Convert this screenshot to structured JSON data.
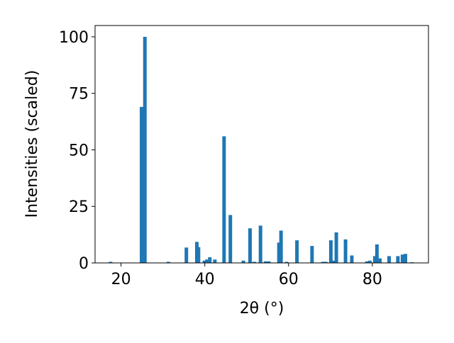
{
  "chart_data": {
    "type": "bar",
    "xlabel": "2θ (°)",
    "ylabel": "Intensities (scaled)",
    "color": "#1f77b4",
    "x": [
      17.5,
      24.9,
      25.7,
      31.3,
      35.6,
      38.1,
      38.5,
      39.9,
      40.5,
      41.2,
      42.4,
      44.6,
      46.1,
      49.2,
      50.8,
      51.8,
      53.3,
      54.5,
      55.3,
      57.7,
      58.2,
      59.5,
      62.0,
      65.6,
      68.2,
      68.9,
      70.1,
      70.8,
      71.4,
      73.6,
      75.1,
      78.7,
      79.4,
      80.6,
      81.1,
      81.8,
      84.0,
      86.1,
      87.2,
      87.9,
      89.5
    ],
    "values": [
      0.5,
      69,
      100,
      0.5,
      6.8,
      9.3,
      7,
      1,
      1.5,
      2.5,
      1.5,
      56,
      21.2,
      1,
      15.3,
      0.5,
      16.5,
      0.7,
      0.7,
      9,
      14.3,
      0.5,
      10,
      7.5,
      0.5,
      0.5,
      10,
      1,
      13.5,
      10.4,
      3.3,
      0.7,
      1,
      3,
      8.2,
      2,
      3,
      3,
      3.7,
      4,
      0.3
    ],
    "xlim": [
      13.8,
      93.4
    ],
    "ylim": [
      0,
      105
    ],
    "xticks": [
      20,
      40,
      60,
      80
    ],
    "yticks": [
      0,
      25,
      50,
      75,
      100
    ]
  }
}
